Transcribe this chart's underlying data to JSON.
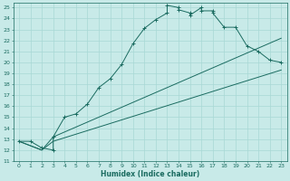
{
  "xlabel": "Humidex (Indice chaleur)",
  "bg_color": "#c8eae8",
  "grid_color": "#a8d8d5",
  "line_color": "#1a6b60",
  "marker": "+",
  "xlim": [
    -0.5,
    23.5
  ],
  "ylim": [
    11,
    25.4
  ],
  "xticks": [
    0,
    1,
    2,
    3,
    4,
    5,
    6,
    7,
    8,
    9,
    10,
    11,
    12,
    13,
    14,
    15,
    16,
    17,
    18,
    19,
    20,
    21,
    22,
    23
  ],
  "yticks": [
    11,
    12,
    13,
    14,
    15,
    16,
    17,
    18,
    19,
    20,
    21,
    22,
    23,
    24,
    25
  ],
  "line1_x": [
    0,
    1,
    2,
    3,
    3,
    4,
    5,
    6,
    7,
    8,
    9,
    10,
    11,
    12,
    13,
    13,
    14,
    14,
    15,
    15,
    16,
    16,
    17,
    17,
    18,
    19,
    20,
    21,
    22,
    23
  ],
  "line1_y": [
    12.8,
    12.8,
    12.2,
    12.0,
    13.2,
    15.0,
    15.3,
    16.2,
    17.7,
    18.5,
    19.8,
    21.7,
    23.1,
    23.9,
    24.5,
    25.2,
    25.0,
    24.8,
    24.5,
    24.3,
    25.0,
    24.7,
    24.7,
    24.5,
    23.2,
    23.2,
    21.5,
    21.0,
    20.2,
    20.0
  ],
  "line2_x": [
    0,
    2,
    3,
    23
  ],
  "line2_y": [
    12.8,
    12.0,
    12.8,
    19.3
  ],
  "line3_x": [
    0,
    2,
    3,
    23
  ],
  "line3_y": [
    12.8,
    12.0,
    13.2,
    22.2
  ]
}
